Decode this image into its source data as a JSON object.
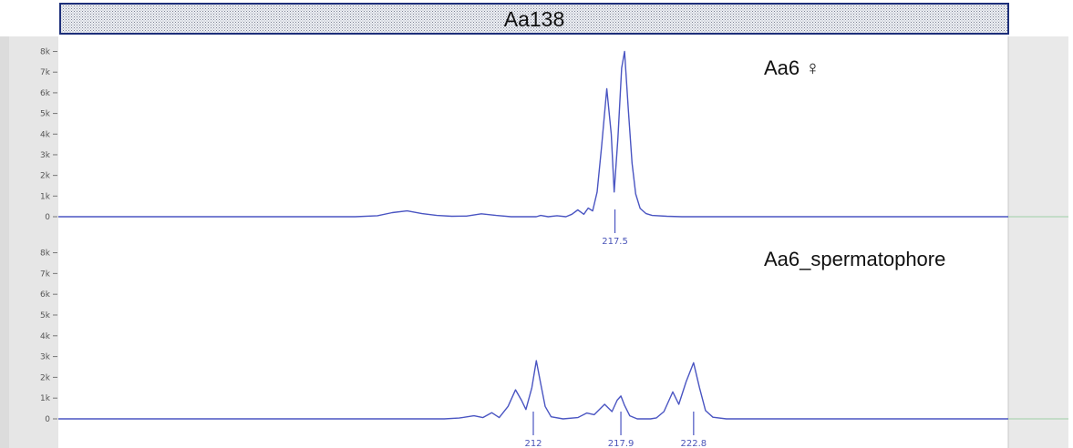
{
  "chart_data": {
    "type": "line",
    "marker": "Aa138",
    "colors": {
      "trace": "#4a55c2",
      "banner_border": "#1d2f7a",
      "axis_strip": "#dedede",
      "right_strip": "#e9e9e9"
    },
    "panels": [
      {
        "name": "Aa6 ♀",
        "yticks": [
          {
            "v": 0,
            "label": "0"
          },
          {
            "v": 1000,
            "label": "1k"
          },
          {
            "v": 2000,
            "label": "2k"
          },
          {
            "v": 3000,
            "label": "3k"
          },
          {
            "v": 4000,
            "label": "4k"
          },
          {
            "v": 5000,
            "label": "5k"
          },
          {
            "v": 6000,
            "label": "6k"
          },
          {
            "v": 7000,
            "label": "7k"
          },
          {
            "v": 8000,
            "label": "8k"
          }
        ],
        "ylim": [
          0,
          8200
        ],
        "xlim": [
          180,
          244
        ],
        "points": [
          [
            180,
            0
          ],
          [
            200,
            0
          ],
          [
            201.5,
            50
          ],
          [
            202.5,
            200
          ],
          [
            203.5,
            280
          ],
          [
            204.5,
            150
          ],
          [
            205.5,
            60
          ],
          [
            206.5,
            20
          ],
          [
            207.5,
            30
          ],
          [
            208.5,
            140
          ],
          [
            209.5,
            60
          ],
          [
            210.5,
            0
          ],
          [
            212.2,
            0
          ],
          [
            212.5,
            60
          ],
          [
            213,
            0
          ],
          [
            213.6,
            50
          ],
          [
            214.2,
            0
          ],
          [
            214.6,
            120
          ],
          [
            215,
            330
          ],
          [
            215.4,
            120
          ],
          [
            215.7,
            420
          ],
          [
            216,
            280
          ],
          [
            216.3,
            1200
          ],
          [
            216.6,
            3400
          ],
          [
            216.95,
            6200
          ],
          [
            217.25,
            4000
          ],
          [
            217.45,
            1200
          ],
          [
            217.7,
            3800
          ],
          [
            217.95,
            7200
          ],
          [
            218.15,
            8000
          ],
          [
            218.4,
            5200
          ],
          [
            218.65,
            2600
          ],
          [
            218.9,
            1100
          ],
          [
            219.2,
            400
          ],
          [
            219.6,
            150
          ],
          [
            220,
            60
          ],
          [
            221,
            20
          ],
          [
            222,
            0
          ],
          [
            244,
            0
          ]
        ],
        "peak_labels": [
          {
            "x": 217.5,
            "label": "217.5"
          }
        ]
      },
      {
        "name": "Aa6_spermatophore",
        "yticks": [
          {
            "v": 0,
            "label": "0"
          },
          {
            "v": 1000,
            "label": "1k"
          },
          {
            "v": 2000,
            "label": "2k"
          },
          {
            "v": 3000,
            "label": "3k"
          },
          {
            "v": 4000,
            "label": "4k"
          },
          {
            "v": 5000,
            "label": "5k"
          },
          {
            "v": 6000,
            "label": "6k"
          },
          {
            "v": 7000,
            "label": "7k"
          },
          {
            "v": 8000,
            "label": "8k"
          }
        ],
        "ylim": [
          0,
          8200
        ],
        "xlim": [
          180,
          244
        ],
        "points": [
          [
            180,
            0
          ],
          [
            206,
            0
          ],
          [
            207,
            40
          ],
          [
            208,
            150
          ],
          [
            208.6,
            60
          ],
          [
            209.2,
            300
          ],
          [
            209.7,
            60
          ],
          [
            210.3,
            600
          ],
          [
            210.8,
            1400
          ],
          [
            211.2,
            900
          ],
          [
            211.5,
            450
          ],
          [
            211.9,
            1500
          ],
          [
            212.2,
            2800
          ],
          [
            212.5,
            1700
          ],
          [
            212.8,
            600
          ],
          [
            213.2,
            100
          ],
          [
            214,
            0
          ],
          [
            215,
            60
          ],
          [
            215.6,
            280
          ],
          [
            216.1,
            200
          ],
          [
            216.8,
            700
          ],
          [
            217.3,
            350
          ],
          [
            217.65,
            900
          ],
          [
            217.9,
            1100
          ],
          [
            218.15,
            650
          ],
          [
            218.5,
            150
          ],
          [
            219,
            0
          ],
          [
            219.9,
            0
          ],
          [
            220.3,
            50
          ],
          [
            220.8,
            350
          ],
          [
            221.4,
            1300
          ],
          [
            221.8,
            700
          ],
          [
            222.3,
            1800
          ],
          [
            222.8,
            2700
          ],
          [
            223.2,
            1500
          ],
          [
            223.6,
            400
          ],
          [
            224.1,
            80
          ],
          [
            225,
            0
          ],
          [
            244,
            0
          ]
        ],
        "peak_labels": [
          {
            "x": 212,
            "label": "212"
          },
          {
            "x": 217.9,
            "label": "217.9"
          },
          {
            "x": 222.8,
            "label": "222.8"
          }
        ]
      }
    ]
  }
}
